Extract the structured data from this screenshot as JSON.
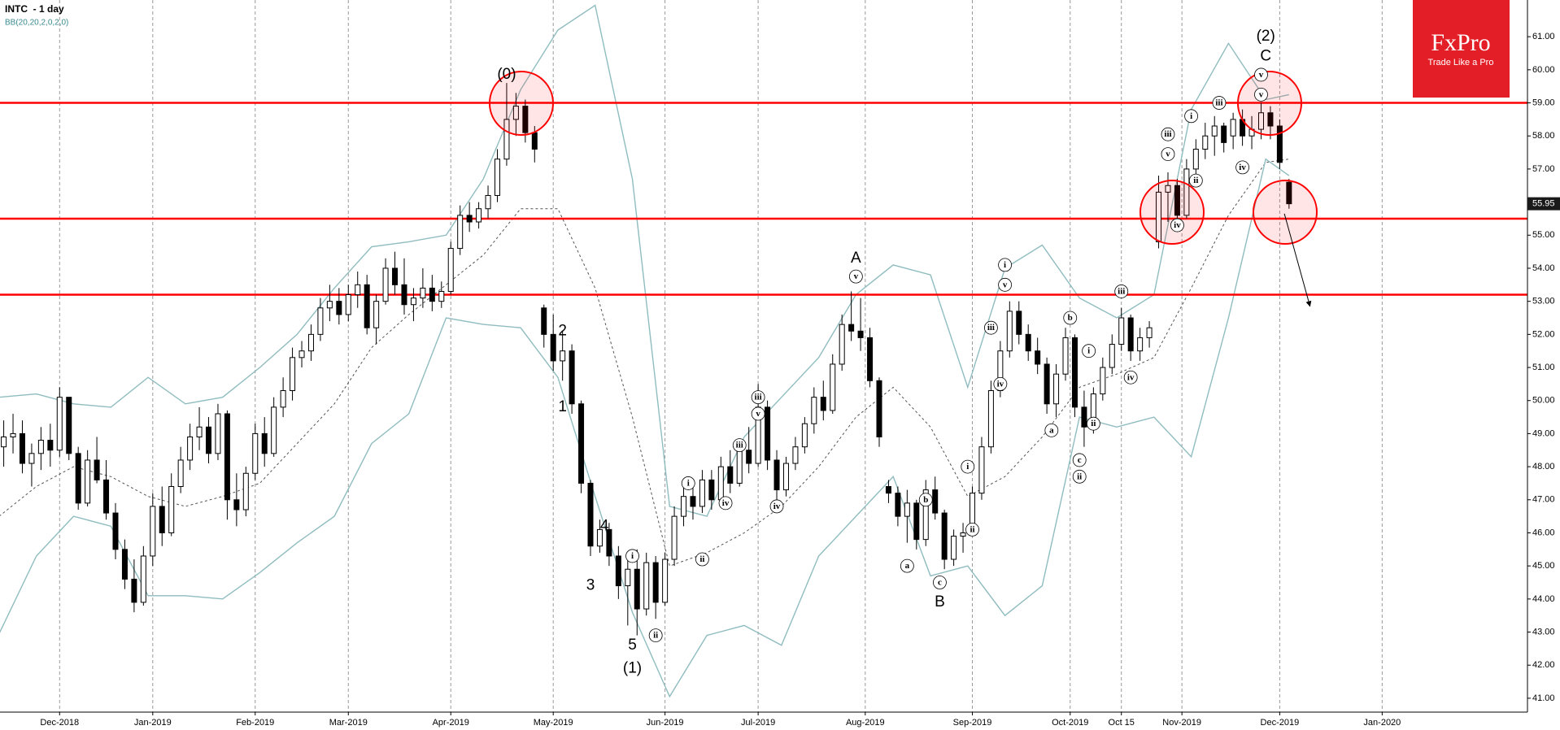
{
  "chart_data": {
    "type": "candlestick",
    "title": "INTC  - 1 day",
    "subtitle": "BB(20,20,2,0,2,0)",
    "x": [
      -12,
      -10,
      -8,
      -6,
      -4,
      -2,
      0,
      2,
      4,
      6,
      8,
      10,
      12,
      14,
      16,
      18,
      20,
      22,
      24,
      26,
      28,
      30,
      32,
      34,
      36,
      38,
      40,
      42,
      44,
      46,
      48,
      50,
      52,
      54,
      56,
      58,
      60,
      62,
      64,
      66,
      68,
      70,
      72,
      74,
      76,
      78,
      80,
      82,
      84,
      86,
      88,
      90,
      92,
      94,
      96,
      98,
      100,
      102,
      104,
      106,
      108,
      110,
      112,
      114,
      116,
      118,
      120,
      122,
      124,
      126,
      128,
      130,
      132,
      134,
      136,
      138,
      140,
      142,
      144,
      146,
      148,
      150,
      152,
      154,
      156,
      158,
      160,
      162,
      164,
      166,
      168,
      170,
      172,
      174,
      176,
      178,
      180,
      182,
      184,
      186,
      188,
      190,
      192,
      194,
      196,
      198,
      200,
      202,
      204,
      206,
      208,
      210,
      212,
      214,
      216,
      218,
      220,
      222,
      224,
      226,
      228,
      230,
      232,
      234,
      236,
      238,
      240,
      242,
      244,
      246,
      248,
      250,
      252,
      254,
      256,
      258,
      260,
      262,
      264
    ],
    "open": [
      48.6,
      48.9,
      49.0,
      48.1,
      48.4,
      48.8,
      48.5,
      50.1,
      48.4,
      46.9,
      48.2,
      47.6,
      46.6,
      45.5,
      44.6,
      43.9,
      45.3,
      46.8,
      46.0,
      47.4,
      48.2,
      48.9,
      49.2,
      48.4,
      49.6,
      47.0,
      46.7,
      47.8,
      49.0,
      48.4,
      49.8,
      50.3,
      51.3,
      51.5,
      52.0,
      52.8,
      53.0,
      52.6,
      53.2,
      53.5,
      52.2,
      53.0,
      54.0,
      53.5,
      52.9,
      53.1,
      53.4,
      53.0,
      53.3,
      54.6,
      55.6,
      55.4,
      55.8,
      56.2,
      57.3,
      58.5,
      58.9,
      58.1,
      52.8,
      52.0,
      51.2,
      51.5,
      49.9,
      47.5,
      45.6,
      46.1,
      45.3,
      44.4,
      44.9,
      43.7,
      45.1,
      43.9,
      45.2,
      46.5,
      47.1,
      46.8,
      47.6,
      47.0,
      48.0,
      47.5,
      48.5,
      48.1,
      49.8,
      48.2,
      47.3,
      48.1,
      48.6,
      49.3,
      50.1,
      49.7,
      51.1,
      52.3,
      52.1,
      51.9,
      50.6,
      47.4,
      47.2,
      46.5,
      46.9,
      45.8,
      47.3,
      46.6,
      45.2,
      45.9,
      46.0,
      47.2,
      48.6,
      50.3,
      51.5,
      52.7,
      52.0,
      51.5,
      51.1,
      49.9,
      50.8,
      51.9,
      49.8,
      49.2,
      50.2,
      51.0,
      51.7,
      52.5,
      51.5,
      51.9,
      54.8,
      56.3,
      56.5,
      55.6,
      57.0,
      57.6,
      58.0,
      58.3,
      58.0,
      58.5,
      58.0,
      58.2,
      58.7,
      58.3,
      56.6
    ],
    "high": [
      49.4,
      49.6,
      49.4,
      48.7,
      49.2,
      49.3,
      50.4,
      50.1,
      48.6,
      48.5,
      48.9,
      48.2,
      46.9,
      45.8,
      45.2,
      45.6,
      47.2,
      47.4,
      47.8,
      48.6,
      49.3,
      49.8,
      49.5,
      49.9,
      49.7,
      47.8,
      48.0,
      49.3,
      49.5,
      50.1,
      50.7,
      51.6,
      51.8,
      52.3,
      53.1,
      53.5,
      53.4,
      53.5,
      53.9,
      53.8,
      53.2,
      54.3,
      54.5,
      54.3,
      53.4,
      54.0,
      53.8,
      53.6,
      54.8,
      55.9,
      56.0,
      56.0,
      56.5,
      57.6,
      59.6,
      59.3,
      59.1,
      58.3,
      52.9,
      52.6,
      52.1,
      51.7,
      50.0,
      47.6,
      46.4,
      46.3,
      45.6,
      45.2,
      45.5,
      45.4,
      45.3,
      45.4,
      46.8,
      47.5,
      47.6,
      47.9,
      47.9,
      48.3,
      48.5,
      48.7,
      49.2,
      50.5,
      50.0,
      48.5,
      48.3,
      48.9,
      49.5,
      50.4,
      50.6,
      51.4,
      52.6,
      53.3,
      53.1,
      52.2,
      50.7,
      47.6,
      47.4,
      47.3,
      47.0,
      47.6,
      47.7,
      46.7,
      46.1,
      46.3,
      47.4,
      48.9,
      50.6,
      51.8,
      53.0,
      53.0,
      52.3,
      51.9,
      51.3,
      51.1,
      52.2,
      52.0,
      50.3,
      50.4,
      51.3,
      52.0,
      52.8,
      52.6,
      52.2,
      52.4,
      56.8,
      56.9,
      56.7,
      57.3,
      57.9,
      58.4,
      58.6,
      58.4,
      58.7,
      58.8,
      58.6,
      59.0,
      58.9,
      58.5,
      56.7
    ],
    "low": [
      48.0,
      48.4,
      47.8,
      47.4,
      47.9,
      48.0,
      48.3,
      48.2,
      46.7,
      46.8,
      47.5,
      46.4,
      45.2,
      44.3,
      43.6,
      43.8,
      45.0,
      45.6,
      45.9,
      47.2,
      47.9,
      48.5,
      48.1,
      48.2,
      46.4,
      46.2,
      46.5,
      47.6,
      48.0,
      48.3,
      49.5,
      50.0,
      51.0,
      51.2,
      51.8,
      52.4,
      52.3,
      52.4,
      52.8,
      52.0,
      51.7,
      52.9,
      53.2,
      52.6,
      52.4,
      52.8,
      52.7,
      52.8,
      53.2,
      54.4,
      55.1,
      55.2,
      55.5,
      56.0,
      57.1,
      58.0,
      57.8,
      57.2,
      51.6,
      50.9,
      50.6,
      49.6,
      47.2,
      45.3,
      45.4,
      45.0,
      44.0,
      43.2,
      42.9,
      43.5,
      43.4,
      43.8,
      45.0,
      46.2,
      46.4,
      46.6,
      46.7,
      46.9,
      47.2,
      47.4,
      47.8,
      48.0,
      47.9,
      47.0,
      47.1,
      47.9,
      48.4,
      49.0,
      49.4,
      49.6,
      50.9,
      51.8,
      51.5,
      50.4,
      48.6,
      46.9,
      46.2,
      45.7,
      45.5,
      45.6,
      46.4,
      44.9,
      45.0,
      45.4,
      45.9,
      47.0,
      48.4,
      50.1,
      51.3,
      51.7,
      51.2,
      50.8,
      49.6,
      49.5,
      50.6,
      49.5,
      48.6,
      49.0,
      50.0,
      50.8,
      51.5,
      51.2,
      51.2,
      51.6,
      54.6,
      55.4,
      55.3,
      55.5,
      56.8,
      57.3,
      57.4,
      57.5,
      57.6,
      57.7,
      57.6,
      57.9,
      57.9,
      57.0,
      55.8
    ],
    "close": [
      48.9,
      49.0,
      48.1,
      48.4,
      48.8,
      48.5,
      50.1,
      48.4,
      46.9,
      48.2,
      47.6,
      46.6,
      45.5,
      44.6,
      43.9,
      45.3,
      46.8,
      46.0,
      47.4,
      48.2,
      48.9,
      49.2,
      48.4,
      49.6,
      47.0,
      46.7,
      47.8,
      49.0,
      48.4,
      49.8,
      50.3,
      51.3,
      51.5,
      52.0,
      52.8,
      53.0,
      52.6,
      53.2,
      53.5,
      52.2,
      53.0,
      54.0,
      53.5,
      52.9,
      53.1,
      53.4,
      53.0,
      53.3,
      54.6,
      55.6,
      55.4,
      55.8,
      56.2,
      57.3,
      58.5,
      58.9,
      58.1,
      57.6,
      52.0,
      51.2,
      51.5,
      49.9,
      47.5,
      45.6,
      46.1,
      45.3,
      44.4,
      44.9,
      43.7,
      45.1,
      43.9,
      45.2,
      46.5,
      47.1,
      46.8,
      47.6,
      47.0,
      48.0,
      47.5,
      48.5,
      48.1,
      49.8,
      48.2,
      47.3,
      48.1,
      48.6,
      49.3,
      50.1,
      49.7,
      51.1,
      52.3,
      52.1,
      51.9,
      50.6,
      48.9,
      47.2,
      46.5,
      46.9,
      45.8,
      47.3,
      46.6,
      45.2,
      45.9,
      46.0,
      47.2,
      48.6,
      50.3,
      51.5,
      52.7,
      52.0,
      51.5,
      51.1,
      49.9,
      50.8,
      51.9,
      49.8,
      49.2,
      50.2,
      51.0,
      51.7,
      52.5,
      51.5,
      51.9,
      52.2,
      56.3,
      56.5,
      55.6,
      57.0,
      57.6,
      58.0,
      58.3,
      57.8,
      58.5,
      58.0,
      58.2,
      58.7,
      58.3,
      57.2,
      55.95
    ],
    "colors": {
      "up": "#ffffff",
      "down": "#000000"
    },
    "bands": {
      "x": [
        -13,
        -5,
        3,
        11,
        19,
        27,
        35,
        43,
        51,
        59,
        67,
        75,
        83,
        91,
        99,
        107,
        115,
        123,
        131,
        139,
        147,
        155,
        163,
        171,
        179,
        187,
        195,
        203,
        211,
        219,
        227,
        235,
        243,
        251,
        259,
        264
      ],
      "upper": [
        50.1,
        50.2,
        49.9,
        49.8,
        50.7,
        49.9,
        50.1,
        51.0,
        52.0,
        53.4,
        54.65,
        54.8,
        55.0,
        56.7,
        59.4,
        61.2,
        61.95,
        56.7,
        46.8,
        46.5,
        48.9,
        50.1,
        51.3,
        53.2,
        54.1,
        53.8,
        50.4,
        54.0,
        54.7,
        53.1,
        52.5,
        53.2,
        58.8,
        60.8,
        59.1,
        59.25
      ],
      "middle": [
        46.5,
        47.4,
        48.0,
        47.7,
        47.1,
        46.8,
        47.1,
        47.5,
        48.7,
        49.9,
        51.6,
        52.6,
        53.5,
        54.4,
        55.8,
        55.8,
        53.4,
        49.5,
        45.0,
        45.4,
        46.0,
        46.8,
        48.0,
        49.5,
        50.4,
        49.2,
        47.1,
        47.7,
        48.9,
        50.4,
        50.8,
        51.3,
        53.4,
        55.6,
        57.2,
        57.3
      ],
      "lower": [
        42.95,
        45.3,
        46.5,
        46.2,
        44.1,
        44.1,
        44.0,
        44.8,
        45.7,
        46.5,
        48.7,
        49.6,
        52.5,
        52.3,
        52.2,
        50.7,
        47.1,
        43.6,
        41.05,
        42.9,
        43.2,
        42.6,
        45.3,
        46.5,
        47.7,
        44.7,
        45.0,
        43.5,
        44.4,
        49.5,
        49.2,
        49.5,
        48.3,
        52.5,
        57.3,
        56.8
      ],
      "color": "#8fbcbf"
    },
    "levels": [
      59.0,
      55.5,
      53.2
    ],
    "level_color": "#ff0000",
    "forecast": {
      "x": [
        263,
        268.5
      ],
      "y": [
        55.65,
        52.85
      ]
    },
    "annotations": [
      {
        "text": "(0)",
        "x": 96,
        "y": 59.85,
        "circled": false
      },
      {
        "text": "2",
        "x": 108,
        "y": 52.1,
        "circled": false
      },
      {
        "text": "1",
        "x": 108,
        "y": 49.8,
        "circled": false
      },
      {
        "text": "3",
        "x": 114,
        "y": 44.4,
        "circled": false
      },
      {
        "text": "4",
        "x": 117,
        "y": 46.2,
        "circled": false
      },
      {
        "text": "5",
        "x": 123,
        "y": 42.6,
        "circled": false
      },
      {
        "text": "(1)",
        "x": 123,
        "y": 41.9,
        "circled": false
      },
      {
        "text": "i",
        "x": 123,
        "y": 45.3,
        "circled": true
      },
      {
        "text": "ii",
        "x": 128,
        "y": 42.9,
        "circled": true
      },
      {
        "text": "i",
        "x": 135,
        "y": 47.5,
        "circled": true
      },
      {
        "text": "ii",
        "x": 138,
        "y": 45.2,
        "circled": true
      },
      {
        "text": "iv",
        "x": 143,
        "y": 46.9,
        "circled": true
      },
      {
        "text": "iii",
        "x": 146,
        "y": 48.65,
        "circled": true
      },
      {
        "text": "iii",
        "x": 150,
        "y": 50.1,
        "circled": true
      },
      {
        "text": "v",
        "x": 150,
        "y": 49.6,
        "circled": true
      },
      {
        "text": "iv",
        "x": 154,
        "y": 46.8,
        "circled": true
      },
      {
        "text": "A",
        "x": 171,
        "y": 54.3,
        "circled": false
      },
      {
        "text": "v",
        "x": 171,
        "y": 53.75,
        "circled": true
      },
      {
        "text": "a",
        "x": 182,
        "y": 45.0,
        "circled": true
      },
      {
        "text": "b",
        "x": 186,
        "y": 47.0,
        "circled": true
      },
      {
        "text": "c",
        "x": 189,
        "y": 44.5,
        "circled": true
      },
      {
        "text": "B",
        "x": 189,
        "y": 43.9,
        "circled": false
      },
      {
        "text": "i",
        "x": 195,
        "y": 48.0,
        "circled": true
      },
      {
        "text": "ii",
        "x": 196,
        "y": 46.1,
        "circled": true
      },
      {
        "text": "iii",
        "x": 200,
        "y": 52.2,
        "circled": true
      },
      {
        "text": "iv",
        "x": 202,
        "y": 50.5,
        "circled": true
      },
      {
        "text": "i",
        "x": 203,
        "y": 54.1,
        "circled": true
      },
      {
        "text": "v",
        "x": 203,
        "y": 53.5,
        "circled": true
      },
      {
        "text": "a",
        "x": 213,
        "y": 49.1,
        "circled": true
      },
      {
        "text": "b",
        "x": 217,
        "y": 52.5,
        "circled": true
      },
      {
        "text": "c",
        "x": 219,
        "y": 48.2,
        "circled": true
      },
      {
        "text": "ii",
        "x": 219,
        "y": 47.7,
        "circled": true
      },
      {
        "text": "i",
        "x": 221,
        "y": 51.5,
        "circled": true
      },
      {
        "text": "ii",
        "x": 222,
        "y": 49.3,
        "circled": true
      },
      {
        "text": "iii",
        "x": 228,
        "y": 53.3,
        "circled": true
      },
      {
        "text": "iv",
        "x": 230,
        "y": 50.7,
        "circled": true
      },
      {
        "text": "iii",
        "x": 238,
        "y": 58.05,
        "circled": true
      },
      {
        "text": "v",
        "x": 238,
        "y": 57.45,
        "circled": true
      },
      {
        "text": "iv",
        "x": 240,
        "y": 55.3,
        "circled": true
      },
      {
        "text": "i",
        "x": 243,
        "y": 58.6,
        "circled": true
      },
      {
        "text": "ii",
        "x": 244,
        "y": 56.65,
        "circled": true
      },
      {
        "text": "iii",
        "x": 249,
        "y": 59.0,
        "circled": true
      },
      {
        "text": "iv",
        "x": 254,
        "y": 57.05,
        "circled": true
      },
      {
        "text": "v",
        "x": 258,
        "y": 59.85,
        "circled": true
      },
      {
        "text": "v",
        "x": 258,
        "y": 59.25,
        "circled": true
      },
      {
        "text": "C",
        "x": 259,
        "y": 60.4,
        "circled": false
      },
      {
        "text": "(2)",
        "x": 259,
        "y": 61.0,
        "circled": false
      }
    ],
    "last_price": 55.95,
    "xlim": [
      -12.8,
      315.2
    ],
    "ylim": [
      40.58,
      62.11
    ],
    "xticks": [
      {
        "value": 0,
        "label": "Dec-2018"
      },
      {
        "value": 20,
        "label": "Jan-2019"
      },
      {
        "value": 42,
        "label": "Feb-2019"
      },
      {
        "value": 62,
        "label": "Mar-2019"
      },
      {
        "value": 84,
        "label": "Apr-2019"
      },
      {
        "value": 106,
        "label": "May-2019"
      },
      {
        "value": 130,
        "label": "Jun-2019"
      },
      {
        "value": 150,
        "label": "Jul-2019"
      },
      {
        "value": 173,
        "label": "Aug-2019"
      },
      {
        "value": 196,
        "label": "Sep-2019"
      },
      {
        "value": 217,
        "label": "Oct-2019"
      },
      {
        "value": 228,
        "label": "Oct 15"
      },
      {
        "value": 241,
        "label": "Nov-2019"
      },
      {
        "value": 262,
        "label": "Dec-2019"
      },
      {
        "value": 284,
        "label": "Jan-2020"
      }
    ],
    "yticks": [
      {
        "value": 41,
        "label": "41.00"
      },
      {
        "value": 42,
        "label": "42.00"
      },
      {
        "value": 43,
        "label": "43.00"
      },
      {
        "value": 44,
        "label": "44.00"
      },
      {
        "value": 45,
        "label": "45.00"
      },
      {
        "value": 46,
        "label": "46.00"
      },
      {
        "value": 47,
        "label": "47.00"
      },
      {
        "value": 48,
        "label": "48.00"
      },
      {
        "value": 49,
        "label": "49.00"
      },
      {
        "value": 50,
        "label": "50.00"
      },
      {
        "value": 51,
        "label": "51.00"
      },
      {
        "value": 52,
        "label": "52.00"
      },
      {
        "value": 53,
        "label": "53.00"
      },
      {
        "value": 54,
        "label": "54.00"
      },
      {
        "value": 55,
        "label": "55.00"
      },
      {
        "value": 56,
        "label": "56.00"
      },
      {
        "value": 57,
        "label": "57.00"
      },
      {
        "value": 58,
        "label": "58.00"
      },
      {
        "value": 59,
        "label": "59.00"
      },
      {
        "value": 60,
        "label": "60.00"
      },
      {
        "value": 61,
        "label": "61.00"
      }
    ],
    "grid": true
  },
  "brand": {
    "name": "FxPro",
    "tagline": "Trade Like a Pro"
  }
}
